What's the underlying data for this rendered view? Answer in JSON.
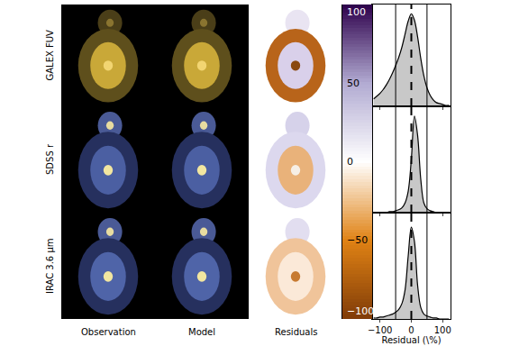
{
  "chart_data": {
    "type": "image_grid",
    "column_labels": [
      "Observation",
      "Model",
      "Residuals"
    ],
    "colorbar": {
      "range": [
        -100,
        100
      ],
      "ticks": [
        {
          "value": 100,
          "label": "100"
        },
        {
          "value": 50,
          "label": "50"
        },
        {
          "value": 0,
          "label": "0"
        },
        {
          "value": -50,
          "label": "−50"
        },
        {
          "value": -100,
          "label": "−100"
        }
      ],
      "colors": [
        "#7f3b08",
        "#e08214",
        "#ffffff",
        "#b2abd2",
        "#2d004b"
      ]
    },
    "histograms": {
      "type": "area",
      "x": [
        -120,
        -110,
        -100,
        -90,
        -80,
        -70,
        -60,
        -50,
        -40,
        -30,
        -20,
        -10,
        0,
        10,
        20,
        30,
        40,
        50,
        60,
        70,
        80,
        90,
        100,
        110,
        120
      ],
      "xlim": [
        -125,
        125
      ],
      "xticks": [
        {
          "value": -100,
          "label": "−100"
        },
        0,
        100
      ],
      "ylim": [
        0,
        1.1
      ],
      "tick_labels": "x",
      "xlabel": "Residual (\\%)",
      "solid_lines": [
        -50,
        50
      ],
      "dashed_lines": [
        0
      ],
      "series": [
        {
          "name": "GALEX FUV",
          "color": "#c8c8c8",
          "values": [
            0.08,
            0.11,
            0.14,
            0.18,
            0.23,
            0.29,
            0.36,
            0.44,
            0.53,
            0.64,
            0.78,
            0.92,
            1.0,
            0.93,
            0.75,
            0.52,
            0.33,
            0.2,
            0.12,
            0.07,
            0.04,
            0.03,
            0.02,
            0.01,
            0.01
          ]
        },
        {
          "name": "SDSS r",
          "color": "#c8c8c8",
          "values": [
            0,
            0,
            0,
            0,
            0,
            0.01,
            0.01,
            0.02,
            0.03,
            0.05,
            0.1,
            0.22,
            0.55,
            1.0,
            0.8,
            0.35,
            0.1,
            0.04,
            0.02,
            0.01,
            0,
            0,
            0,
            0,
            0
          ]
        },
        {
          "name": "IRAC 3.6 μm",
          "color": "#c8c8c8",
          "values": [
            0.01,
            0.01,
            0.02,
            0.02,
            0.03,
            0.04,
            0.05,
            0.07,
            0.1,
            0.16,
            0.3,
            0.65,
            0.95,
            0.8,
            0.35,
            0.12,
            0.05,
            0.03,
            0.02,
            0.01,
            0.01,
            0,
            0,
            0,
            0
          ]
        }
      ]
    }
  }
}
